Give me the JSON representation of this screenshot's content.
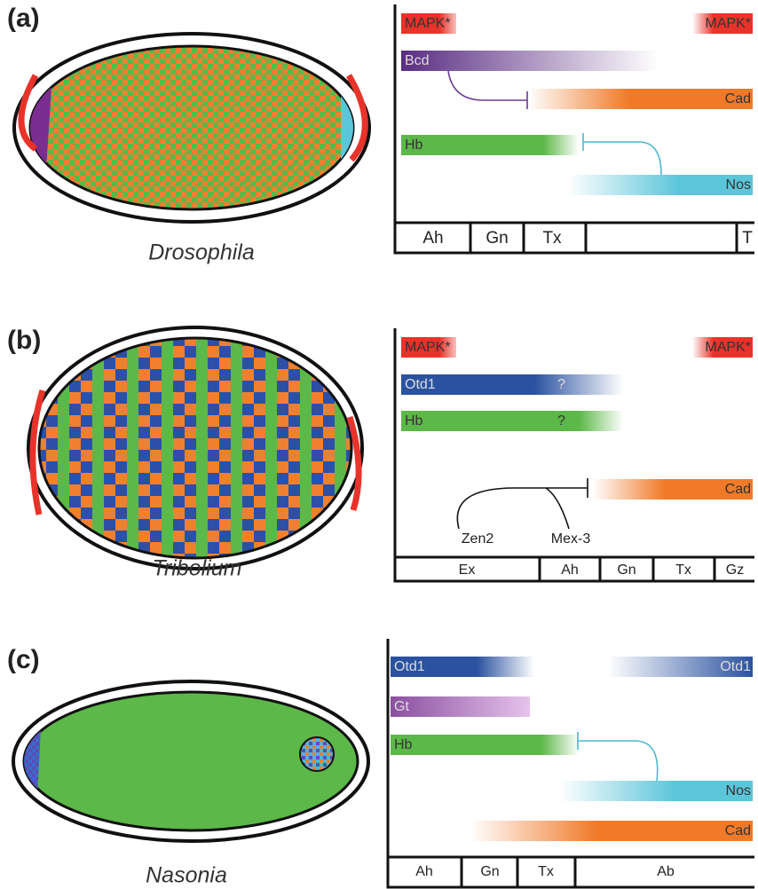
{
  "panels": [
    {
      "label": "(a)",
      "species": "Drosophila",
      "bars": [
        "MAPK*",
        "MAPK*",
        "Bcd",
        "Cad",
        "Hb",
        "Nos"
      ],
      "regions": [
        "Ah",
        "Gn",
        "Tx",
        "T"
      ]
    },
    {
      "label": "(b)",
      "species": "Tribolium",
      "bars": [
        "MAPK*",
        "MAPK*",
        "Otd1",
        "Hb",
        "Cad"
      ],
      "marks": [
        "?",
        "?"
      ],
      "regulators": [
        "Zen2",
        "Mex-3"
      ],
      "regions": [
        "Ex",
        "Ah",
        "Gn",
        "Tx",
        "Gz"
      ]
    },
    {
      "label": "(c)",
      "species": "Nasonia",
      "bars": [
        "Otd1",
        "Otd1",
        "Gt",
        "Hb",
        "Nos",
        "Cad"
      ],
      "regions": [
        "Ah",
        "Gn",
        "Tx",
        "Ab"
      ]
    }
  ]
}
